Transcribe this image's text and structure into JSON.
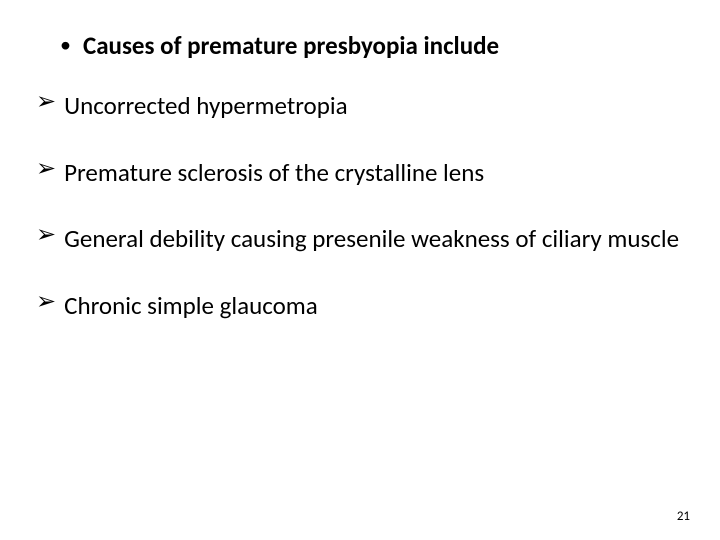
{
  "title": {
    "bullet": "•",
    "text": "Causes of premature presbyopia include"
  },
  "arrow_glyph": "➢",
  "items": [
    "Uncorrected hypermetropia",
    "Premature sclerosis of the crystalline lens",
    "General debility causing presenile weakness of ciliary muscle",
    "Chronic simple glaucoma"
  ],
  "page_number": "21",
  "colors": {
    "background": "#ffffff",
    "text": "#000000"
  },
  "fonts": {
    "title_size_pt": 25,
    "title_weight": 700,
    "item_size_pt": 25,
    "item_weight": 400,
    "page_num_size_pt": 13
  }
}
